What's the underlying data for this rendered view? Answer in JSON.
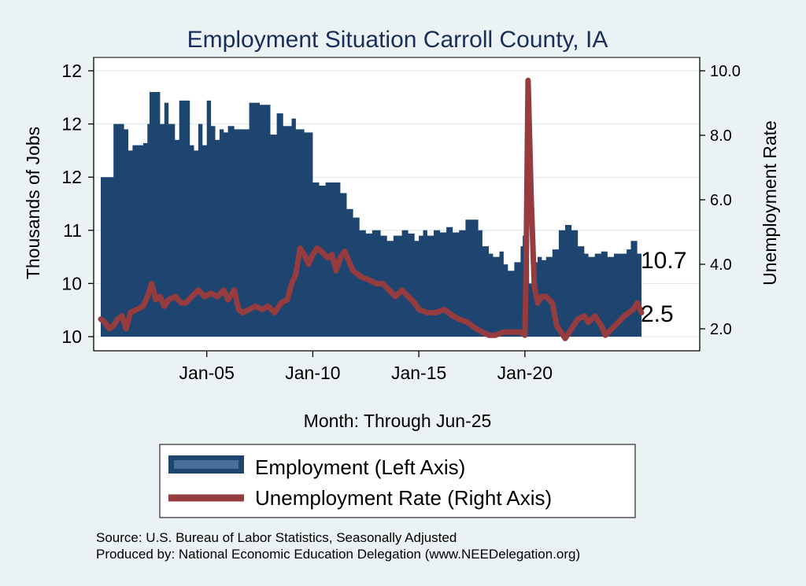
{
  "chart_data": {
    "type": "bar+line",
    "title": "Employment Situation Carroll  County, IA",
    "xlabel": "Month: Through Jun-25",
    "ylabel_left": "Thousands of Jobs",
    "ylabel_right": "Unemployment Rate",
    "left_ticks": [
      "10",
      "10",
      "11",
      "12",
      "12",
      "12"
    ],
    "left_tick_values": [
      10.0,
      10.5,
      11.0,
      11.5,
      12.0,
      12.5
    ],
    "left_ylim": [
      9.96,
      12.56
    ],
    "right_ticks": [
      "2.0",
      "4.0",
      "6.0",
      "8.0",
      "10.0"
    ],
    "right_tick_values": [
      2,
      4,
      6,
      8,
      10
    ],
    "right_ylim": [
      1.6,
      10.2
    ],
    "x_ticks": [
      "Jan-05",
      "Jan-10",
      "Jan-15",
      "Jan-20"
    ],
    "x_tick_values": [
      2005.0,
      2010.0,
      2015.0,
      2020.0
    ],
    "x_range": [
      2000.0,
      2025.5
    ],
    "employment": [
      [
        2000.0,
        11.5
      ],
      [
        2000.5,
        11.5
      ],
      [
        2000.6,
        12.0
      ],
      [
        2001.0,
        12.0
      ],
      [
        2001.1,
        11.95
      ],
      [
        2001.3,
        11.75
      ],
      [
        2001.5,
        11.8
      ],
      [
        2002.0,
        11.82
      ],
      [
        2002.2,
        12.0
      ],
      [
        2002.3,
        12.3
      ],
      [
        2002.6,
        12.3
      ],
      [
        2002.8,
        12.0
      ],
      [
        2003.0,
        12.2
      ],
      [
        2003.2,
        12.0
      ],
      [
        2003.5,
        11.85
      ],
      [
        2003.7,
        12.22
      ],
      [
        2004.0,
        12.22
      ],
      [
        2004.2,
        11.8
      ],
      [
        2004.4,
        11.75
      ],
      [
        2004.6,
        12.0
      ],
      [
        2004.8,
        11.8
      ],
      [
        2005.0,
        12.22
      ],
      [
        2005.2,
        11.98
      ],
      [
        2005.4,
        11.85
      ],
      [
        2005.6,
        11.95
      ],
      [
        2005.8,
        11.92
      ],
      [
        2006.0,
        11.98
      ],
      [
        2006.3,
        11.95
      ],
      [
        2006.6,
        11.95
      ],
      [
        2007.0,
        12.2
      ],
      [
        2007.5,
        12.18
      ],
      [
        2008.0,
        11.9
      ],
      [
        2008.3,
        12.1
      ],
      [
        2008.6,
        11.98
      ],
      [
        2009.0,
        12.05
      ],
      [
        2009.2,
        11.95
      ],
      [
        2009.6,
        11.92
      ],
      [
        2010.0,
        11.45
      ],
      [
        2010.3,
        11.42
      ],
      [
        2010.6,
        11.45
      ],
      [
        2011.0,
        11.45
      ],
      [
        2011.3,
        11.35
      ],
      [
        2011.6,
        11.2
      ],
      [
        2011.9,
        11.12
      ],
      [
        2012.2,
        11.0
      ],
      [
        2012.5,
        10.97
      ],
      [
        2012.8,
        11.0
      ],
      [
        2013.2,
        10.95
      ],
      [
        2013.5,
        10.9
      ],
      [
        2013.8,
        10.95
      ],
      [
        2014.2,
        11.0
      ],
      [
        2014.5,
        10.97
      ],
      [
        2014.8,
        10.9
      ],
      [
        2015.0,
        10.95
      ],
      [
        2015.2,
        11.0
      ],
      [
        2015.4,
        10.95
      ],
      [
        2015.7,
        11.0
      ],
      [
        2016.0,
        10.98
      ],
      [
        2016.3,
        11.03
      ],
      [
        2016.6,
        10.98
      ],
      [
        2016.9,
        11.0
      ],
      [
        2017.2,
        11.1
      ],
      [
        2017.5,
        11.1
      ],
      [
        2017.8,
        11.0
      ],
      [
        2018.0,
        10.85
      ],
      [
        2018.3,
        10.78
      ],
      [
        2018.5,
        10.75
      ],
      [
        2018.8,
        10.8
      ],
      [
        2019.0,
        10.68
      ],
      [
        2019.2,
        10.62
      ],
      [
        2019.5,
        10.7
      ],
      [
        2019.8,
        10.85
      ],
      [
        2019.9,
        10.95
      ],
      [
        2020.0,
        11.15
      ],
      [
        2020.1,
        11.0
      ],
      [
        2020.2,
        10.5
      ],
      [
        2020.4,
        10.7
      ],
      [
        2020.6,
        10.75
      ],
      [
        2020.8,
        10.72
      ],
      [
        2021.0,
        10.75
      ],
      [
        2021.3,
        10.82
      ],
      [
        2021.6,
        11.0
      ],
      [
        2021.9,
        11.05
      ],
      [
        2022.2,
        11.0
      ],
      [
        2022.5,
        10.85
      ],
      [
        2022.8,
        10.78
      ],
      [
        2023.0,
        10.75
      ],
      [
        2023.3,
        10.78
      ],
      [
        2023.6,
        10.8
      ],
      [
        2023.9,
        10.75
      ],
      [
        2024.2,
        10.78
      ],
      [
        2024.5,
        10.78
      ],
      [
        2024.8,
        10.82
      ],
      [
        2025.0,
        10.9
      ],
      [
        2025.3,
        10.78
      ],
      [
        2025.5,
        10.7
      ]
    ],
    "unemployment": [
      [
        2000.0,
        2.3
      ],
      [
        2000.2,
        2.2
      ],
      [
        2000.4,
        2.0
      ],
      [
        2000.6,
        2.1
      ],
      [
        2000.8,
        2.3
      ],
      [
        2001.0,
        2.4
      ],
      [
        2001.2,
        2.0
      ],
      [
        2001.4,
        2.5
      ],
      [
        2001.7,
        2.6
      ],
      [
        2002.0,
        2.7
      ],
      [
        2002.2,
        3.0
      ],
      [
        2002.4,
        3.4
      ],
      [
        2002.6,
        2.9
      ],
      [
        2002.8,
        3.0
      ],
      [
        2003.0,
        2.7
      ],
      [
        2003.2,
        2.9
      ],
      [
        2003.5,
        3.0
      ],
      [
        2003.8,
        2.8
      ],
      [
        2004.0,
        2.8
      ],
      [
        2004.3,
        3.0
      ],
      [
        2004.6,
        3.2
      ],
      [
        2004.9,
        3.0
      ],
      [
        2005.2,
        3.1
      ],
      [
        2005.5,
        3.0
      ],
      [
        2005.8,
        3.2
      ],
      [
        2006.0,
        2.9
      ],
      [
        2006.3,
        3.2
      ],
      [
        2006.5,
        2.6
      ],
      [
        2006.7,
        2.5
      ],
      [
        2007.0,
        2.6
      ],
      [
        2007.3,
        2.7
      ],
      [
        2007.6,
        2.6
      ],
      [
        2007.9,
        2.7
      ],
      [
        2008.2,
        2.5
      ],
      [
        2008.5,
        2.8
      ],
      [
        2008.8,
        2.9
      ],
      [
        2009.0,
        3.4
      ],
      [
        2009.2,
        3.7
      ],
      [
        2009.4,
        4.5
      ],
      [
        2009.6,
        4.3
      ],
      [
        2009.8,
        4.0
      ],
      [
        2010.0,
        4.3
      ],
      [
        2010.2,
        4.5
      ],
      [
        2010.4,
        4.4
      ],
      [
        2010.7,
        4.2
      ],
      [
        2010.9,
        4.3
      ],
      [
        2011.1,
        3.8
      ],
      [
        2011.3,
        4.2
      ],
      [
        2011.5,
        4.4
      ],
      [
        2011.7,
        4.1
      ],
      [
        2011.9,
        3.8
      ],
      [
        2012.3,
        3.6
      ],
      [
        2012.7,
        3.5
      ],
      [
        2013.0,
        3.4
      ],
      [
        2013.3,
        3.4
      ],
      [
        2013.6,
        3.2
      ],
      [
        2013.9,
        3.0
      ],
      [
        2014.2,
        3.2
      ],
      [
        2014.5,
        3.0
      ],
      [
        2014.8,
        2.8
      ],
      [
        2015.0,
        2.6
      ],
      [
        2015.4,
        2.5
      ],
      [
        2015.8,
        2.5
      ],
      [
        2016.2,
        2.6
      ],
      [
        2016.6,
        2.4
      ],
      [
        2016.9,
        2.3
      ],
      [
        2017.3,
        2.2
      ],
      [
        2017.7,
        2.0
      ],
      [
        2018.0,
        1.9
      ],
      [
        2018.3,
        1.8
      ],
      [
        2018.6,
        1.8
      ],
      [
        2019.0,
        1.9
      ],
      [
        2019.4,
        1.9
      ],
      [
        2019.8,
        1.9
      ],
      [
        2020.0,
        1.8
      ],
      [
        2020.05,
        3.5
      ],
      [
        2020.15,
        9.7
      ],
      [
        2020.3,
        6.0
      ],
      [
        2020.45,
        3.3
      ],
      [
        2020.6,
        2.8
      ],
      [
        2020.8,
        3.0
      ],
      [
        2021.0,
        3.0
      ],
      [
        2021.3,
        2.8
      ],
      [
        2021.5,
        2.1
      ],
      [
        2021.7,
        1.9
      ],
      [
        2021.9,
        1.7
      ],
      [
        2022.2,
        2.0
      ],
      [
        2022.5,
        2.3
      ],
      [
        2022.8,
        2.4
      ],
      [
        2023.0,
        2.2
      ],
      [
        2023.3,
        2.4
      ],
      [
        2023.6,
        2.1
      ],
      [
        2023.8,
        1.8
      ],
      [
        2024.1,
        2.0
      ],
      [
        2024.4,
        2.2
      ],
      [
        2024.7,
        2.4
      ],
      [
        2024.9,
        2.5
      ],
      [
        2025.1,
        2.6
      ],
      [
        2025.3,
        2.8
      ],
      [
        2025.5,
        2.5
      ]
    ],
    "end_labels": {
      "employment": "10.7",
      "unemployment": "2.5"
    },
    "legend": {
      "employment": "Employment (Left Axis)",
      "unemployment": "Unemployment Rate (Right Axis)"
    },
    "source_line1": "Source: U.S. Bureau of Labor Statistics, Seasonally Adjusted",
    "source_line2": "Produced by: National Economic Education Delegation (www.NEEDelegation.org)",
    "colors": {
      "employment": "#1d4570",
      "unemployment": "#963c3f",
      "plot_bg": "#ffffff",
      "bg": "#eaf2f3",
      "title": "#1c2d5a",
      "grid": "#dde7ec"
    }
  }
}
